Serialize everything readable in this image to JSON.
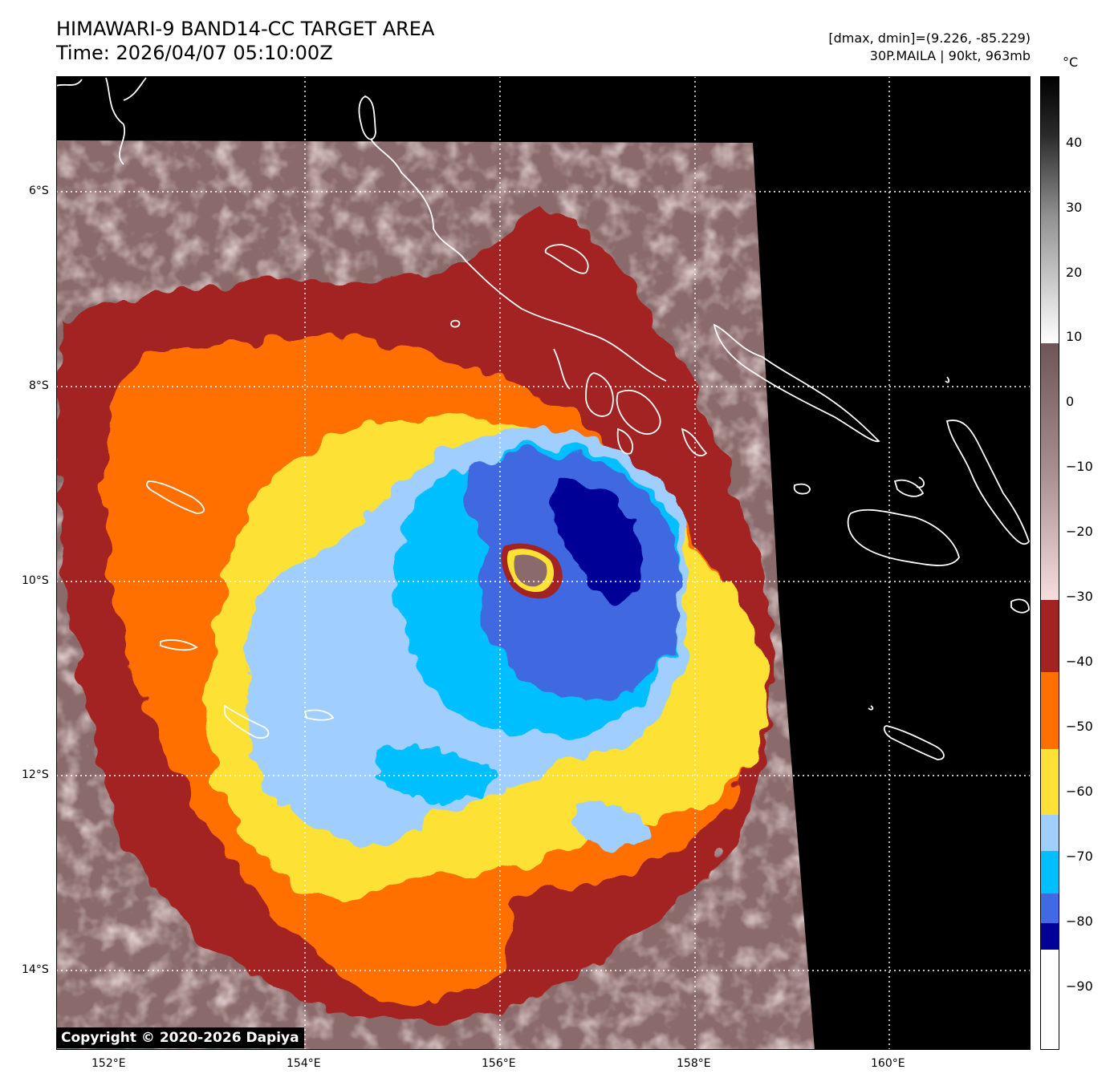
{
  "header": {
    "title": "HIMAWARI-9 BAND14-CC TARGET AREA",
    "time": "Time: 2026/04/07 05:10:00Z",
    "dmax_dmin": "[dmax, dmin]=(9.226, -85.229)",
    "storm": "30P.MAILA | 90kt, 963mb"
  },
  "map": {
    "lon_labels": [
      "152°E",
      "154°E",
      "156°E",
      "158°E",
      "160°E"
    ],
    "lat_labels": [
      "6°S",
      "8°S",
      "10°S",
      "12°S",
      "14°S"
    ],
    "copyright": "Copyright © 2020-2026 Dapiya"
  },
  "colorbar": {
    "unit": "°C",
    "labels": [
      "40",
      "30",
      "20",
      "10",
      "0",
      "−10",
      "−20",
      "−30",
      "−40",
      "−50",
      "−60",
      "−70",
      "−80",
      "−90"
    ],
    "colors": {
      "white": "#ffffff",
      "navy": "#000096",
      "royal_blue": "#4169e1",
      "deep_sky": "#00bfff",
      "light_blue": "#a0cfff",
      "yellow": "#fde136",
      "orange": "#ff7000",
      "dark_red": "#a32323",
      "warm_background": "#8a6a6a"
    }
  }
}
